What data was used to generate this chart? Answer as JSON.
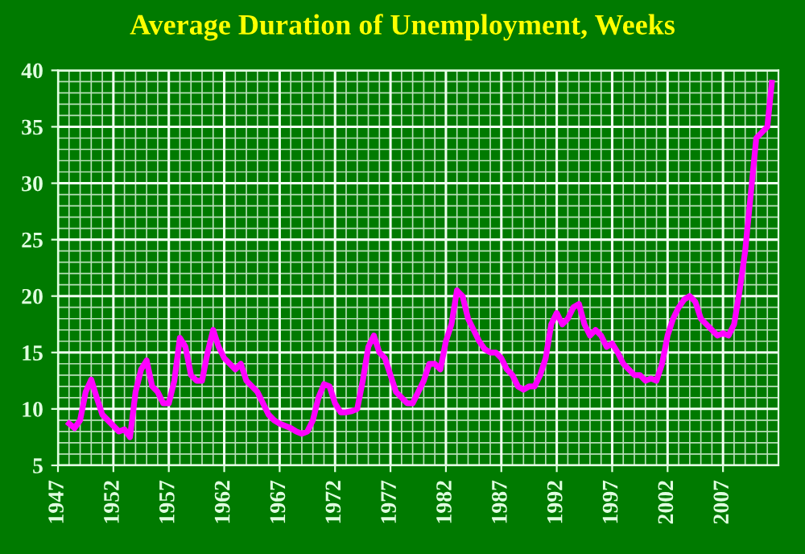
{
  "chart_data": {
    "type": "line",
    "title": "Average Duration of Unemployment, Weeks",
    "x": [
      1948.0,
      1948.5,
      1949.0,
      1949.5,
      1950.0,
      1950.5,
      1951.0,
      1951.5,
      1952.0,
      1952.5,
      1953.0,
      1953.5,
      1954.0,
      1954.5,
      1955.0,
      1955.5,
      1956.0,
      1956.5,
      1957.0,
      1957.5,
      1958.0,
      1958.5,
      1959.0,
      1959.5,
      1960.0,
      1960.5,
      1961.0,
      1961.5,
      1962.0,
      1962.5,
      1963.0,
      1963.5,
      1964.0,
      1964.5,
      1965.0,
      1965.5,
      1966.0,
      1966.5,
      1967.0,
      1967.5,
      1968.0,
      1968.5,
      1969.0,
      1969.5,
      1970.0,
      1970.5,
      1971.0,
      1971.5,
      1972.0,
      1972.5,
      1973.0,
      1973.5,
      1974.0,
      1974.5,
      1975.0,
      1975.5,
      1976.0,
      1976.5,
      1977.0,
      1977.5,
      1978.0,
      1978.5,
      1979.0,
      1979.5,
      1980.0,
      1980.5,
      1981.0,
      1981.5,
      1982.0,
      1982.5,
      1983.0,
      1983.5,
      1984.0,
      1984.5,
      1985.0,
      1985.5,
      1986.0,
      1986.5,
      1987.0,
      1987.5,
      1988.0,
      1988.5,
      1989.0,
      1989.5,
      1990.0,
      1990.5,
      1991.0,
      1991.5,
      1992.0,
      1992.5,
      1993.0,
      1993.5,
      1994.0,
      1994.5,
      1995.0,
      1995.5,
      1996.0,
      1996.5,
      1997.0,
      1997.5,
      1998.0,
      1998.5,
      1999.0,
      1999.5,
      2000.0,
      2000.5,
      2001.0,
      2001.5,
      2002.0,
      2002.5,
      2003.0,
      2003.5,
      2004.0,
      2004.5,
      2005.0,
      2005.5,
      2006.0,
      2006.5,
      2007.0,
      2007.5,
      2008.0,
      2008.5,
      2009.0,
      2009.5,
      2010.0,
      2010.5,
      2011.0,
      2011.4
    ],
    "series": [
      {
        "color": "#ff00ff",
        "values": [
          8.7,
          8.3,
          9.0,
          11.5,
          12.6,
          11.0,
          9.5,
          9.0,
          8.5,
          8.0,
          8.2,
          7.5,
          11.5,
          13.5,
          14.3,
          12.0,
          11.5,
          10.5,
          10.5,
          12.5,
          16.3,
          15.5,
          13.0,
          12.5,
          12.5,
          15.0,
          17.0,
          15.5,
          14.5,
          14.0,
          13.5,
          14.0,
          12.5,
          12.0,
          11.5,
          10.5,
          9.5,
          9.0,
          8.7,
          8.5,
          8.3,
          8.0,
          7.8,
          8.0,
          9.0,
          11.0,
          12.2,
          12.0,
          10.5,
          9.7,
          9.7,
          9.8,
          10.0,
          12.5,
          15.5,
          16.5,
          15.0,
          14.5,
          13.0,
          11.5,
          11.0,
          10.5,
          10.5,
          11.5,
          12.5,
          14.0,
          14.0,
          13.5,
          16.0,
          17.5,
          20.5,
          20.0,
          18.0,
          17.0,
          16.0,
          15.3,
          15.0,
          15.0,
          14.5,
          13.5,
          13.0,
          12.0,
          11.7,
          12.0,
          12.0,
          13.0,
          14.5,
          17.5,
          18.5,
          17.5,
          18.0,
          19.0,
          19.3,
          17.5,
          16.5,
          17.0,
          16.5,
          15.5,
          15.8,
          15.0,
          14.0,
          13.5,
          13.0,
          13.0,
          12.5,
          12.7,
          12.5,
          14.0,
          16.5,
          18.0,
          19.0,
          19.7,
          20.0,
          19.5,
          18.0,
          17.5,
          17.0,
          16.5,
          16.7,
          16.5,
          17.5,
          20.5,
          24.0,
          29.0,
          34.0,
          34.5,
          35.0,
          38.9
        ]
      }
    ],
    "xlim": [
      1947,
      2012
    ],
    "ylim": [
      5,
      40
    ],
    "xticks": [
      1947,
      1952,
      1957,
      1962,
      1967,
      1972,
      1977,
      1982,
      1987,
      1992,
      1997,
      2002,
      2007
    ],
    "yticks": [
      5,
      10,
      15,
      20,
      25,
      30,
      35,
      40
    ],
    "grid": true,
    "line_style": "solid",
    "marker": "none"
  }
}
